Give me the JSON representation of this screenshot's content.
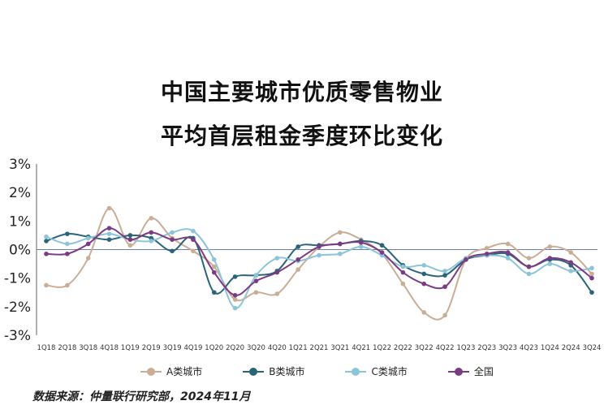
{
  "title_line1": "中国主要城市优质零售物业",
  "title_line2": "平均首层租金季度环比变化",
  "source": "数据来源：仲量联行研究部，2024年11月",
  "chart_data": {
    "type": "line",
    "title": "中国主要城市优质零售物业 平均首层租金季度环比变化",
    "xlabel": "",
    "ylabel": "",
    "ylim": [
      -3,
      3
    ],
    "yticks": [
      "3%",
      "2%",
      "1%",
      "0%",
      "-1%",
      "-2%",
      "-3%"
    ],
    "grid": false,
    "legend_position": "bottom",
    "categories": [
      "1Q18",
      "2Q18",
      "3Q18",
      "4Q18",
      "1Q19",
      "2Q19",
      "3Q19",
      "4Q19",
      "1Q20",
      "2Q20",
      "3Q20",
      "4Q20",
      "1Q21",
      "2Q21",
      "3Q21",
      "4Q21",
      "1Q22",
      "2Q22",
      "3Q22",
      "4Q22",
      "1Q23",
      "2Q23",
      "3Q23",
      "4Q23",
      "1Q24",
      "2Q24",
      "3Q24"
    ],
    "series": [
      {
        "name": "A类城市",
        "color": "#c9ad96",
        "values": [
          -1.25,
          -1.25,
          -0.3,
          1.45,
          0.15,
          1.1,
          0.4,
          -0.05,
          -0.6,
          -1.75,
          -1.5,
          -1.55,
          -0.7,
          0.1,
          0.6,
          0.35,
          -0.15,
          -1.2,
          -2.2,
          -2.3,
          -0.35,
          0.05,
          0.2,
          -0.3,
          0.1,
          -0.1,
          -0.85
        ]
      },
      {
        "name": "B类城市",
        "color": "#2a6479",
        "values": [
          0.3,
          0.55,
          0.45,
          0.35,
          0.5,
          0.4,
          -0.05,
          0.4,
          -1.5,
          -0.95,
          -0.9,
          -0.75,
          0.1,
          0.15,
          0.2,
          0.3,
          0.15,
          -0.55,
          -0.85,
          -0.9,
          -0.35,
          -0.2,
          -0.15,
          -0.6,
          -0.35,
          -0.55,
          -1.5
        ]
      },
      {
        "name": "C类城市",
        "color": "#8cc4d8",
        "values": [
          0.45,
          0.2,
          0.4,
          0.55,
          0.35,
          0.3,
          0.6,
          0.65,
          -0.35,
          -2.05,
          -0.9,
          -0.3,
          -0.4,
          -0.2,
          -0.15,
          0.1,
          -0.2,
          -0.6,
          -0.55,
          -0.75,
          -0.3,
          -0.2,
          -0.3,
          -0.85,
          -0.5,
          -0.75,
          -0.65
        ]
      },
      {
        "name": "全国",
        "color": "#7b3b83",
        "values": [
          -0.15,
          -0.15,
          0.2,
          0.75,
          0.35,
          0.6,
          0.35,
          0.35,
          -0.8,
          -1.6,
          -1.1,
          -0.8,
          -0.35,
          0.1,
          0.2,
          0.25,
          -0.1,
          -0.8,
          -1.2,
          -1.3,
          -0.35,
          -0.15,
          -0.1,
          -0.6,
          -0.3,
          -0.45,
          -1.0
        ]
      }
    ]
  }
}
